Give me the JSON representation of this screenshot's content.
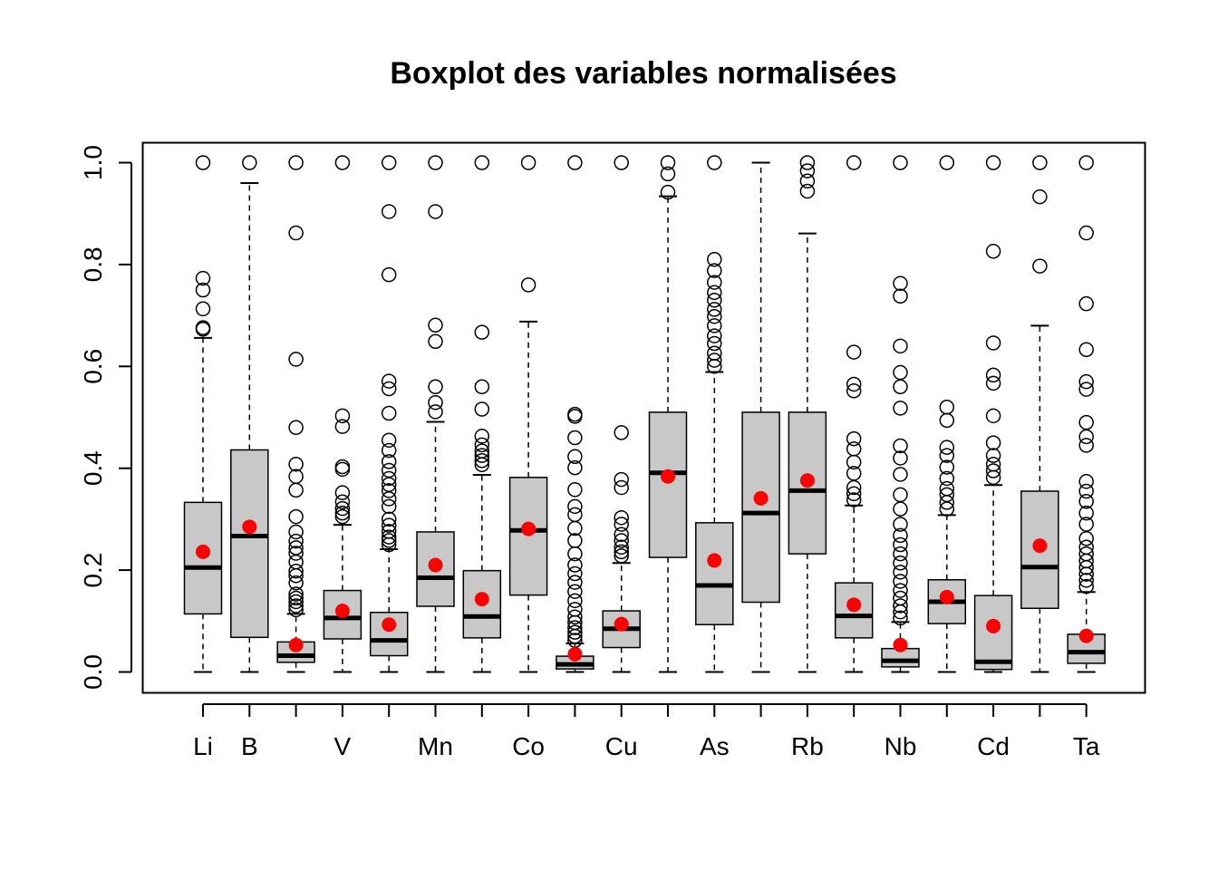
{
  "chart_data": {
    "type": "boxplot",
    "title": "Boxplot des variables normalisées",
    "xlabel": "",
    "ylabel": "",
    "ylim": [
      0,
      1
    ],
    "y_ticks": [
      "0.0",
      "0.2",
      "0.4",
      "0.6",
      "0.8",
      "1.0"
    ],
    "x_tick_labels": [
      "Li",
      "B",
      "",
      "V",
      "",
      "Mn",
      "",
      "Co",
      "",
      "Cu",
      "",
      "As",
      "",
      "Rb",
      "",
      "Nb",
      "",
      "Cd",
      "",
      "Ta"
    ],
    "box_fill": "#c8c8c8",
    "mean_color": "#ff0000",
    "boxes": [
      {
        "q1": 0.114,
        "median": 0.205,
        "q3": 0.333,
        "whisker_low": 0.0,
        "whisker_high": 0.656,
        "mean": 0.236,
        "outliers": [
          0.673,
          0.676,
          0.713,
          0.75,
          0.773,
          1.0
        ]
      },
      {
        "q1": 0.068,
        "median": 0.267,
        "q3": 0.436,
        "whisker_low": 0.0,
        "whisker_high": 0.96,
        "mean": 0.285,
        "outliers": [
          1.0
        ]
      },
      {
        "q1": 0.019,
        "median": 0.032,
        "q3": 0.059,
        "whisker_low": 0.0,
        "whisker_high": 0.114,
        "mean": 0.053,
        "outliers": [
          0.122,
          0.13,
          0.138,
          0.145,
          0.153,
          0.175,
          0.189,
          0.198,
          0.216,
          0.233,
          0.244,
          0.257,
          0.275,
          0.305,
          0.357,
          0.384,
          0.408,
          0.48,
          0.614,
          0.862,
          1.0
        ]
      },
      {
        "q1": 0.065,
        "median": 0.106,
        "q3": 0.16,
        "whisker_low": 0.0,
        "whisker_high": 0.289,
        "mean": 0.12,
        "outliers": [
          0.305,
          0.312,
          0.321,
          0.334,
          0.352,
          0.398,
          0.403,
          0.482,
          0.503,
          1.0
        ]
      },
      {
        "q1": 0.032,
        "median": 0.062,
        "q3": 0.117,
        "whisker_low": 0.0,
        "whisker_high": 0.241,
        "mean": 0.093,
        "outliers": [
          0.25,
          0.258,
          0.265,
          0.276,
          0.288,
          0.3,
          0.325,
          0.34,
          0.356,
          0.368,
          0.38,
          0.396,
          0.413,
          0.435,
          0.455,
          0.508,
          0.556,
          0.571,
          0.78,
          0.904,
          1.0
        ]
      },
      {
        "q1": 0.129,
        "median": 0.185,
        "q3": 0.275,
        "whisker_low": 0.0,
        "whisker_high": 0.491,
        "mean": 0.21,
        "outliers": [
          0.511,
          0.529,
          0.56,
          0.649,
          0.681,
          0.904,
          1.0
        ]
      },
      {
        "q1": 0.067,
        "median": 0.109,
        "q3": 0.199,
        "whisker_low": 0.0,
        "whisker_high": 0.387,
        "mean": 0.143,
        "outliers": [
          0.407,
          0.415,
          0.425,
          0.434,
          0.446,
          0.463,
          0.516,
          0.56,
          0.667,
          1.0
        ]
      },
      {
        "q1": 0.151,
        "median": 0.278,
        "q3": 0.382,
        "whisker_low": 0.0,
        "whisker_high": 0.688,
        "mean": 0.281,
        "outliers": [
          0.76,
          1.0
        ]
      },
      {
        "q1": 0.006,
        "median": 0.015,
        "q3": 0.031,
        "whisker_low": 0.0,
        "whisker_high": 0.056,
        "mean": 0.035,
        "outliers": [
          0.062,
          0.07,
          0.078,
          0.087,
          0.097,
          0.108,
          0.123,
          0.14,
          0.158,
          0.176,
          0.193,
          0.21,
          0.232,
          0.258,
          0.282,
          0.309,
          0.325,
          0.358,
          0.401,
          0.423,
          0.46,
          0.502,
          0.506,
          1.0
        ]
      },
      {
        "q1": 0.048,
        "median": 0.085,
        "q3": 0.12,
        "whisker_low": 0.0,
        "whisker_high": 0.214,
        "mean": 0.094,
        "outliers": [
          0.228,
          0.236,
          0.245,
          0.258,
          0.27,
          0.29,
          0.303,
          0.362,
          0.378,
          0.47,
          1.0
        ]
      },
      {
        "q1": 0.225,
        "median": 0.391,
        "q3": 0.51,
        "whisker_low": 0.0,
        "whisker_high": 0.934,
        "mean": 0.384,
        "outliers": [
          0.942,
          0.978,
          1.0
        ]
      },
      {
        "q1": 0.093,
        "median": 0.17,
        "q3": 0.293,
        "whisker_low": 0.0,
        "whisker_high": 0.589,
        "mean": 0.219,
        "outliers": [
          0.6,
          0.612,
          0.626,
          0.645,
          0.66,
          0.68,
          0.698,
          0.712,
          0.73,
          0.745,
          0.765,
          0.788,
          0.81,
          1.0
        ]
      },
      {
        "q1": 0.137,
        "median": 0.312,
        "q3": 0.51,
        "whisker_low": 0.0,
        "whisker_high": 1.0,
        "mean": 0.341,
        "outliers": []
      },
      {
        "q1": 0.232,
        "median": 0.356,
        "q3": 0.51,
        "whisker_low": 0.0,
        "whisker_high": 0.861,
        "mean": 0.376,
        "outliers": [
          0.944,
          0.964,
          0.984,
          1.0
        ]
      },
      {
        "q1": 0.067,
        "median": 0.11,
        "q3": 0.175,
        "whisker_low": 0.0,
        "whisker_high": 0.327,
        "mean": 0.132,
        "outliers": [
          0.338,
          0.35,
          0.362,
          0.39,
          0.412,
          0.438,
          0.458,
          0.552,
          0.565,
          0.628,
          1.0
        ]
      },
      {
        "q1": 0.01,
        "median": 0.022,
        "q3": 0.046,
        "whisker_low": 0.0,
        "whisker_high": 0.098,
        "mean": 0.053,
        "outliers": [
          0.106,
          0.118,
          0.13,
          0.145,
          0.16,
          0.178,
          0.196,
          0.214,
          0.232,
          0.25,
          0.268,
          0.29,
          0.32,
          0.348,
          0.388,
          0.42,
          0.444,
          0.518,
          0.56,
          0.588,
          0.64,
          0.738,
          0.763,
          1.0
        ]
      },
      {
        "q1": 0.095,
        "median": 0.138,
        "q3": 0.181,
        "whisker_low": 0.0,
        "whisker_high": 0.308,
        "mean": 0.147,
        "outliers": [
          0.32,
          0.333,
          0.348,
          0.36,
          0.38,
          0.402,
          0.425,
          0.441,
          0.494,
          0.52,
          1.0
        ]
      },
      {
        "q1": 0.005,
        "median": 0.02,
        "q3": 0.15,
        "whisker_low": 0.0,
        "whisker_high": 0.367,
        "mean": 0.09,
        "outliers": [
          0.382,
          0.395,
          0.408,
          0.425,
          0.45,
          0.503,
          0.567,
          0.583,
          0.646,
          0.826,
          1.0
        ]
      },
      {
        "q1": 0.125,
        "median": 0.206,
        "q3": 0.355,
        "whisker_low": 0.0,
        "whisker_high": 0.68,
        "mean": 0.248,
        "outliers": [
          0.797,
          0.933,
          1.0
        ]
      },
      {
        "q1": 0.017,
        "median": 0.039,
        "q3": 0.074,
        "whisker_low": 0.0,
        "whisker_high": 0.157,
        "mean": 0.071,
        "outliers": [
          0.168,
          0.18,
          0.192,
          0.205,
          0.218,
          0.232,
          0.245,
          0.262,
          0.29,
          0.312,
          0.335,
          0.355,
          0.374,
          0.445,
          0.462,
          0.49,
          0.555,
          0.57,
          0.633,
          0.723,
          0.862,
          1.0
        ]
      }
    ]
  }
}
